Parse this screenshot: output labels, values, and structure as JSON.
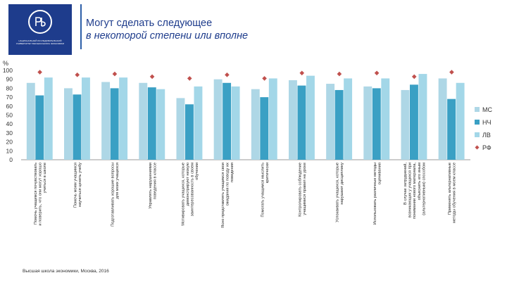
{
  "header": {
    "title_line1": "Могут сделать следующее",
    "title_line2": "в  некоторой степени или вполне",
    "logo_caption": "НАЦИОНАЛЬНЫЙ ИССЛЕДОВАТЕЛЬСКИЙ УНИВЕРСИТЕТ ВЫСШАЯ ШКОЛА ЭКОНОМИКИ"
  },
  "footer": {
    "text": "Высшая школа экономики, Москва, 2016"
  },
  "colors": {
    "brand": "#1e3c8c",
    "series_mc": "#aed7e6",
    "series_nch": "#3aa0c4",
    "series_lv": "#a3d7e8",
    "marker_rf": "#c0504d"
  },
  "chart_data": {
    "type": "bar",
    "unit_label": "%",
    "ylim": [
      0,
      100
    ],
    "yticks": [
      0,
      10,
      20,
      30,
      40,
      50,
      60,
      70,
      80,
      90,
      100
    ],
    "grid": false,
    "legend_position": "right",
    "categories": [
      [
        "Помочь учащимся почувствовать",
        "и поверить, что они могут хорошо",
        "учиться в школе"
      ],
      [
        "Помочь моим учащимся",
        "научиться ценить учебу"
      ],
      [
        "Подготавливать хорошие вопросы",
        "для моих учащихся"
      ],
      [
        "Управлять нарушениями",
        "поведения в классе"
      ],
      [
        "Мотивировать учащихся, которые",
        "демонстрируют низкую",
        "заинтересованность в своем",
        "обучении"
      ],
      [
        "Ясно представлять учащимся свои",
        "ожидания по поводу их",
        "поведения"
      ],
      [
        "Помогать учащимся мыслить",
        "критически"
      ],
      [
        "Контролировать соблюдение",
        "учащимися правил на уроке"
      ],
      [
        "Успокаивать учащихся, которые",
        "нарушают дисциплину"
      ],
      [
        "Использовать различные методы",
        "оценивания"
      ],
      [
        "В случае затруднений,",
        "возникающих у учащихся при",
        "понимании нового материала,",
        "объяснить его иным",
        "(альтернативным) способом"
      ],
      [
        "Применять альтернативные",
        "методы обучения в моем классе"
      ]
    ],
    "series": [
      {
        "name": "МС",
        "kind": "bar",
        "values": [
          86,
          80,
          87,
          86,
          69,
          90,
          79,
          89,
          85,
          82,
          78,
          91
        ]
      },
      {
        "name": "НЧ",
        "kind": "bar",
        "values": [
          72,
          73,
          80,
          81,
          62,
          86,
          70,
          83,
          78,
          80,
          84,
          68
        ]
      },
      {
        "name": "ЛВ",
        "kind": "bar",
        "values": [
          92,
          92,
          92,
          79,
          82,
          82,
          91,
          94,
          91,
          91,
          96,
          86
        ]
      },
      {
        "name": "РФ",
        "kind": "marker",
        "values": [
          98,
          95,
          96,
          93,
          91,
          95,
          91,
          97,
          96,
          97,
          93,
          98
        ]
      }
    ]
  }
}
